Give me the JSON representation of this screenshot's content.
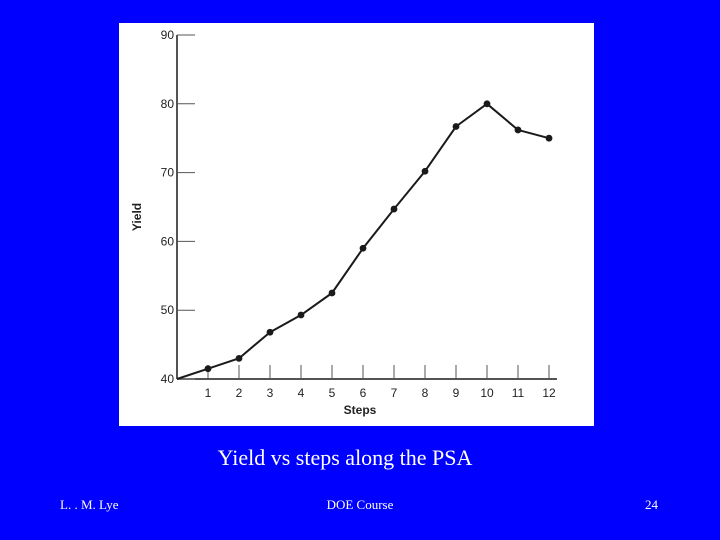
{
  "slide": {
    "caption": "Yield vs steps along the PSA",
    "footer_left": "L. . M. Lye",
    "footer_center": "DOE Course",
    "footer_right": "24"
  },
  "chart_data": {
    "type": "line",
    "title": "",
    "xlabel": "Steps",
    "ylabel": "Yield",
    "x": [
      0,
      1,
      2,
      3,
      4,
      5,
      6,
      7,
      8,
      9,
      10,
      11,
      12
    ],
    "values": [
      40,
      41.5,
      43,
      46.8,
      49.3,
      52.5,
      59,
      64.7,
      70.2,
      76.7,
      80,
      76.2,
      75
    ],
    "xlim": [
      0,
      12
    ],
    "ylim": [
      40,
      90
    ],
    "xticks": [
      "1",
      "2",
      "3",
      "4",
      "5",
      "6",
      "7",
      "8",
      "9",
      "10",
      "11",
      "12"
    ],
    "yticks": [
      "40",
      "50",
      "60",
      "70",
      "80",
      "90"
    ],
    "grid": false,
    "colors": {
      "line": "#1a1a1a",
      "marker": "#1a1a1a",
      "background": "#ffffff"
    }
  }
}
